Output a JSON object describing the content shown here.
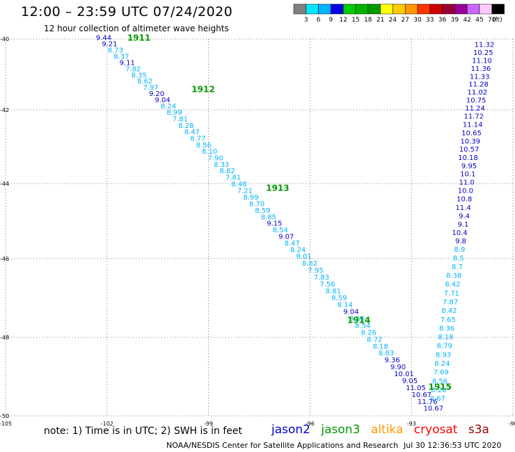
{
  "header": {
    "title": "12:00 – 23:59 UTC 07/24/2020",
    "subtitle": "12 hour collection of altimeter wave heights"
  },
  "footer": {
    "note": "note:  1) Time is in UTC;  2) SWH is in feet",
    "credit": "NOAA/NESDIS Center for Satellite Applications and Research",
    "timestamp": "Jul 30 12:36:53 UTC 2020"
  },
  "legend_satellites": [
    {
      "name": "jason2",
      "color": "#0000cc"
    },
    {
      "name": "jason3",
      "color": "#009900"
    },
    {
      "name": "altika",
      "color": "#ff9900"
    },
    {
      "name": "cryosat",
      "color": "#ff0000"
    },
    {
      "name": "s3a",
      "color": "#990000"
    }
  ],
  "color_scale": {
    "unit": "(ft)",
    "labels": [
      "3",
      "6",
      "9",
      "12",
      "15",
      "18",
      "21",
      "24",
      "27",
      "30",
      "33",
      "36",
      "39",
      "42",
      "45",
      "70"
    ],
    "colors": [
      "#808080",
      "#00e5ff",
      "#00b3ff",
      "#0000e6",
      "#00cc00",
      "#00b300",
      "#009900",
      "#ffff00",
      "#ffcc00",
      "#ff9900",
      "#ff3300",
      "#cc0000",
      "#990033",
      "#990099",
      "#cc66ff",
      "#ffccff",
      "#000000"
    ]
  },
  "chart_data": {
    "type": "scatter",
    "title": "12 hour collection of altimeter wave heights",
    "xlabel": "",
    "ylabel": "",
    "xlim": [
      -105,
      -90
    ],
    "ylim": [
      -50,
      -40
    ],
    "x_ticks": [
      -105,
      -102,
      -99,
      -96,
      -93,
      -90
    ],
    "y_ticks": [
      -40,
      -42,
      -44,
      -46,
      -48,
      -50
    ],
    "grid": true,
    "passes": [
      {
        "label": "1911",
        "label_x": -101.4,
        "label_y": -39.95
      },
      {
        "label": "1912",
        "label_x": -99.5,
        "label_y": -41.4
      },
      {
        "label": "1913",
        "label_x": -97.3,
        "label_y": -44.1
      },
      {
        "label": "1914",
        "label_x": -94.9,
        "label_y": -47.55
      },
      {
        "label": "1915",
        "label_x": -92.5,
        "label_y": -49.25
      }
    ],
    "track_left": {
      "lon_start": -102.1,
      "lat_start": -39.95,
      "lon_end": -92.35,
      "lat_end": -49.8,
      "values": [
        "9.44",
        "9.21",
        "8.73",
        "8.37",
        "9.11",
        "7.82",
        "8.35",
        "8.62",
        "7.97",
        "9.20",
        "9.04",
        "8.24",
        "8.99",
        "7.81",
        "8.28",
        "8.47",
        "8.77",
        "8.56",
        "8.10",
        "7.90",
        "8.33",
        "8.82",
        "7.81",
        "8.48",
        "7.21",
        "8.99",
        "8.70",
        "8.59",
        "8.85",
        "9.15",
        "8.54",
        "9.07",
        "8.47",
        "8.24",
        "8.01",
        "8.82",
        "7.95",
        "7.83",
        "7.56",
        "8.81",
        "8.59",
        "8.14",
        "9.04",
        "8.56",
        "8.54",
        "8.26",
        "8.72",
        "8.18",
        "8.83",
        "9.36",
        "9.90",
        "10.01",
        "9.05",
        "11.05",
        "10.67",
        "11.76",
        "10.67"
      ]
    },
    "track_right": {
      "lon_start": -90.55,
      "lat_start": -40.15,
      "lon_end": -92.0,
      "lat_end": -49.55,
      "values": [
        "11.32",
        "10.25",
        "11.10",
        "11.36",
        "11.33",
        "11.28",
        "11.02",
        "10.75",
        "11.24",
        "11.72",
        "11.14",
        "10.65",
        "10.39",
        "10.57",
        "10.18",
        "9.95",
        "10.1",
        "11.0",
        "10.0",
        "10.8",
        "11.4",
        "9.4",
        "9.1",
        "10.4",
        "9.8",
        "8.9",
        "8.5",
        "8.7",
        "8.38",
        "8.42",
        "7.71",
        "7.87",
        "8.42",
        "7.65",
        "8.36",
        "8.18",
        "8.79",
        "8.93",
        "8.24",
        "7.69",
        "8.56",
        "8.20",
        "8.67"
      ]
    }
  }
}
